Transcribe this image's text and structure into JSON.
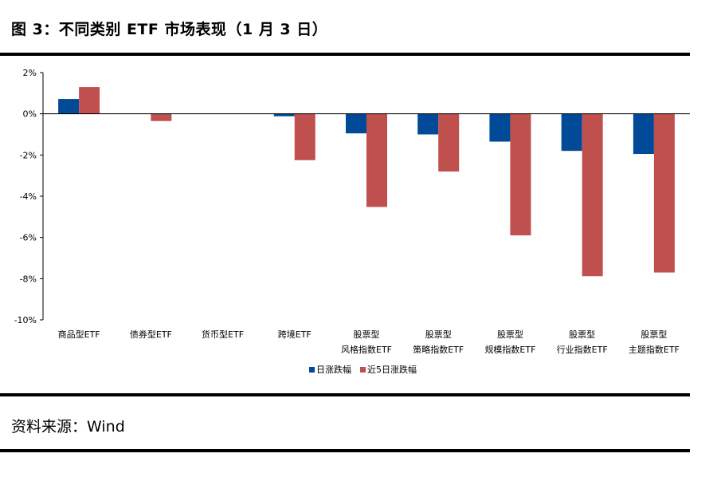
{
  "header": {
    "title": "图 3：不同类别 ETF 市场表现（1 月 3 日）"
  },
  "footer": {
    "source": "资料来源：Wind"
  },
  "colors": {
    "daily": "#004a97",
    "five_day": "#c0504d"
  },
  "chart_data": {
    "type": "bar",
    "title": "",
    "xlabel": "",
    "ylabel": "",
    "ylim": [
      -10,
      2
    ],
    "yticks": [
      2,
      0,
      -2,
      -4,
      -6,
      -8,
      -10
    ],
    "ytick_labels": [
      "2%",
      "0%",
      "-2%",
      "-4%",
      "-6%",
      "-8%",
      "-10%"
    ],
    "grid": false,
    "legend_position": "bottom",
    "categories": [
      [
        "商品型ETF"
      ],
      [
        "债券型ETF"
      ],
      [
        "货币型ETF"
      ],
      [
        "跨境ETF"
      ],
      [
        "股票型",
        "风格指数ETF"
      ],
      [
        "股票型",
        "策略指数ETF"
      ],
      [
        "股票型",
        "规模指数ETF"
      ],
      [
        "股票型",
        "行业指数ETF"
      ],
      [
        "股票型",
        "主题指数ETF"
      ]
    ],
    "series": [
      {
        "name": "日涨跌幅",
        "values": [
          0.72,
          0.0,
          0.0,
          -0.12,
          -0.95,
          -1.0,
          -1.35,
          -1.8,
          -1.95
        ]
      },
      {
        "name": "近5日涨跌幅",
        "values": [
          1.3,
          -0.35,
          0.0,
          -2.25,
          -4.52,
          -2.8,
          -5.9,
          -7.88,
          -7.7
        ]
      }
    ]
  }
}
